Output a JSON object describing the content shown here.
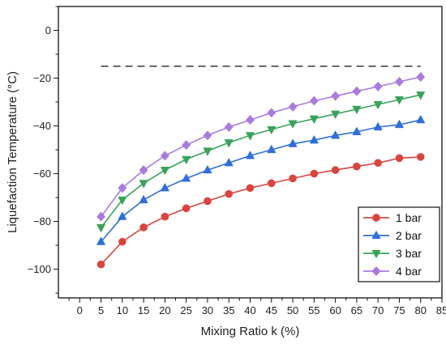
{
  "chart_data": {
    "type": "line",
    "xlabel": "Mixing Ratio k (%)",
    "ylabel": "Liquefaction Temperature (°C)",
    "xlim": [
      -5,
      85
    ],
    "ylim": [
      -112,
      10
    ],
    "x_ticks": [
      0,
      5,
      10,
      15,
      20,
      25,
      30,
      35,
      40,
      45,
      50,
      55,
      60,
      65,
      70,
      75,
      80,
      85
    ],
    "y_ticks": [
      0,
      -20,
      -40,
      -60,
      -80,
      -100
    ],
    "y_tick_labels": [
      "0",
      "−20",
      "−40",
      "−60",
      "−80",
      "−100"
    ],
    "x": [
      5,
      10,
      15,
      20,
      25,
      30,
      35,
      40,
      45,
      50,
      55,
      60,
      65,
      70,
      75,
      80
    ],
    "series": [
      {
        "name": "1 bar",
        "color": "#d9443f",
        "marker": "circle",
        "values": [
          -98,
          -88.5,
          -82.5,
          -78,
          -74.5,
          -71.5,
          -68.5,
          -66,
          -64,
          -62,
          -60,
          -58.5,
          -57,
          -55.5,
          -53.5,
          -53
        ]
      },
      {
        "name": "2 bar",
        "color": "#2e6fd8",
        "marker": "triangle-up",
        "values": [
          -88.5,
          -78,
          -71,
          -66,
          -62,
          -58.5,
          -55.5,
          -52.5,
          -50,
          -47.5,
          -46,
          -44,
          -42.5,
          -40.5,
          -39.5,
          -37.5
        ]
      },
      {
        "name": "3 bar",
        "color": "#3aa35a",
        "marker": "triangle-down",
        "values": [
          -82.5,
          -71,
          -64,
          -58.5,
          -54,
          -50.5,
          -47,
          -44,
          -41.5,
          -39,
          -37,
          -35,
          -33,
          -31,
          -29,
          -27
        ]
      },
      {
        "name": "4 bar",
        "color": "#a97be0",
        "marker": "diamond",
        "values": [
          -78,
          -66,
          -58.5,
          -52.5,
          -48,
          -44,
          -40.5,
          -37.5,
          -34.5,
          -32,
          -29.5,
          -27.5,
          -25.5,
          -23.5,
          -21.5,
          -19.5
        ]
      }
    ],
    "reference_line": {
      "y": -15,
      "x_range": [
        5,
        80
      ],
      "style": "dashed",
      "color": "#444444"
    },
    "legend_position": "bottom-right",
    "grid": false
  }
}
